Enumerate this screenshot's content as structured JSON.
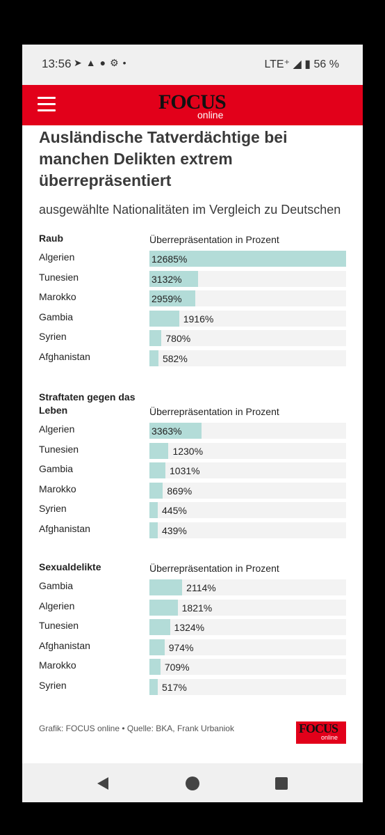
{
  "status_bar": {
    "time": "13:56",
    "network": "LTE⁺",
    "battery": "56 %",
    "icons": [
      "telegram-icon",
      "warning-icon",
      "notification-icon",
      "settings-icon"
    ]
  },
  "app_bar": {
    "menu_icon": "hamburger-menu-icon",
    "logo_word": "FOCUS",
    "logo_sub": "online",
    "brand_color": "#e2001a"
  },
  "article": {
    "title": "Ausländische Tatverdächtige bei manchen Delikten extrem überrepräsentiert",
    "subtitle": "ausgewählte Nationalitäten im Vergleich zu Deutschen"
  },
  "chart_data": [
    {
      "type": "bar",
      "title": "Raub",
      "xlabel": "Überrepräsentation in Prozent",
      "categories": [
        "Algerien",
        "Tunesien",
        "Marokko",
        "Gambia",
        "Syrien",
        "Afghanistan"
      ],
      "values": [
        12685,
        3132,
        2959,
        1916,
        780,
        582
      ],
      "labels": [
        "12685%",
        "3132%",
        "2959%",
        "1916%",
        "780%",
        "582%"
      ],
      "xlim": [
        0,
        12685
      ]
    },
    {
      "type": "bar",
      "title": "Straftaten gegen das Leben",
      "xlabel": "Überrepräsentation in Prozent",
      "categories": [
        "Algerien",
        "Tunesien",
        "Gambia",
        "Marokko",
        "Syrien",
        "Afghanistan"
      ],
      "values": [
        3363,
        1230,
        1031,
        869,
        445,
        439
      ],
      "labels": [
        "3363%",
        "1230%",
        "1031%",
        "869%",
        "445%",
        "439%"
      ],
      "xlim": [
        0,
        12685
      ]
    },
    {
      "type": "bar",
      "title": "Sexualdelikte",
      "xlabel": "Überrepräsentation in Prozent",
      "categories": [
        "Gambia",
        "Algerien",
        "Tunesien",
        "Afghanistan",
        "Marokko",
        "Syrien"
      ],
      "values": [
        2114,
        1821,
        1324,
        974,
        709,
        517
      ],
      "labels": [
        "2114%",
        "1821%",
        "1324%",
        "974%",
        "709%",
        "517%"
      ],
      "xlim": [
        0,
        12685
      ]
    }
  ],
  "colors": {
    "bar": "#b3dcd8",
    "track": "#f3f3f3"
  },
  "footer": {
    "source": "Grafik: FOCUS online • Quelle: BKA, Frank Urbaniok",
    "logo_word": "FOCUS",
    "logo_sub": "online"
  },
  "nav_bar": {
    "back": "back-icon",
    "home": "home-icon",
    "recents": "recents-icon"
  }
}
